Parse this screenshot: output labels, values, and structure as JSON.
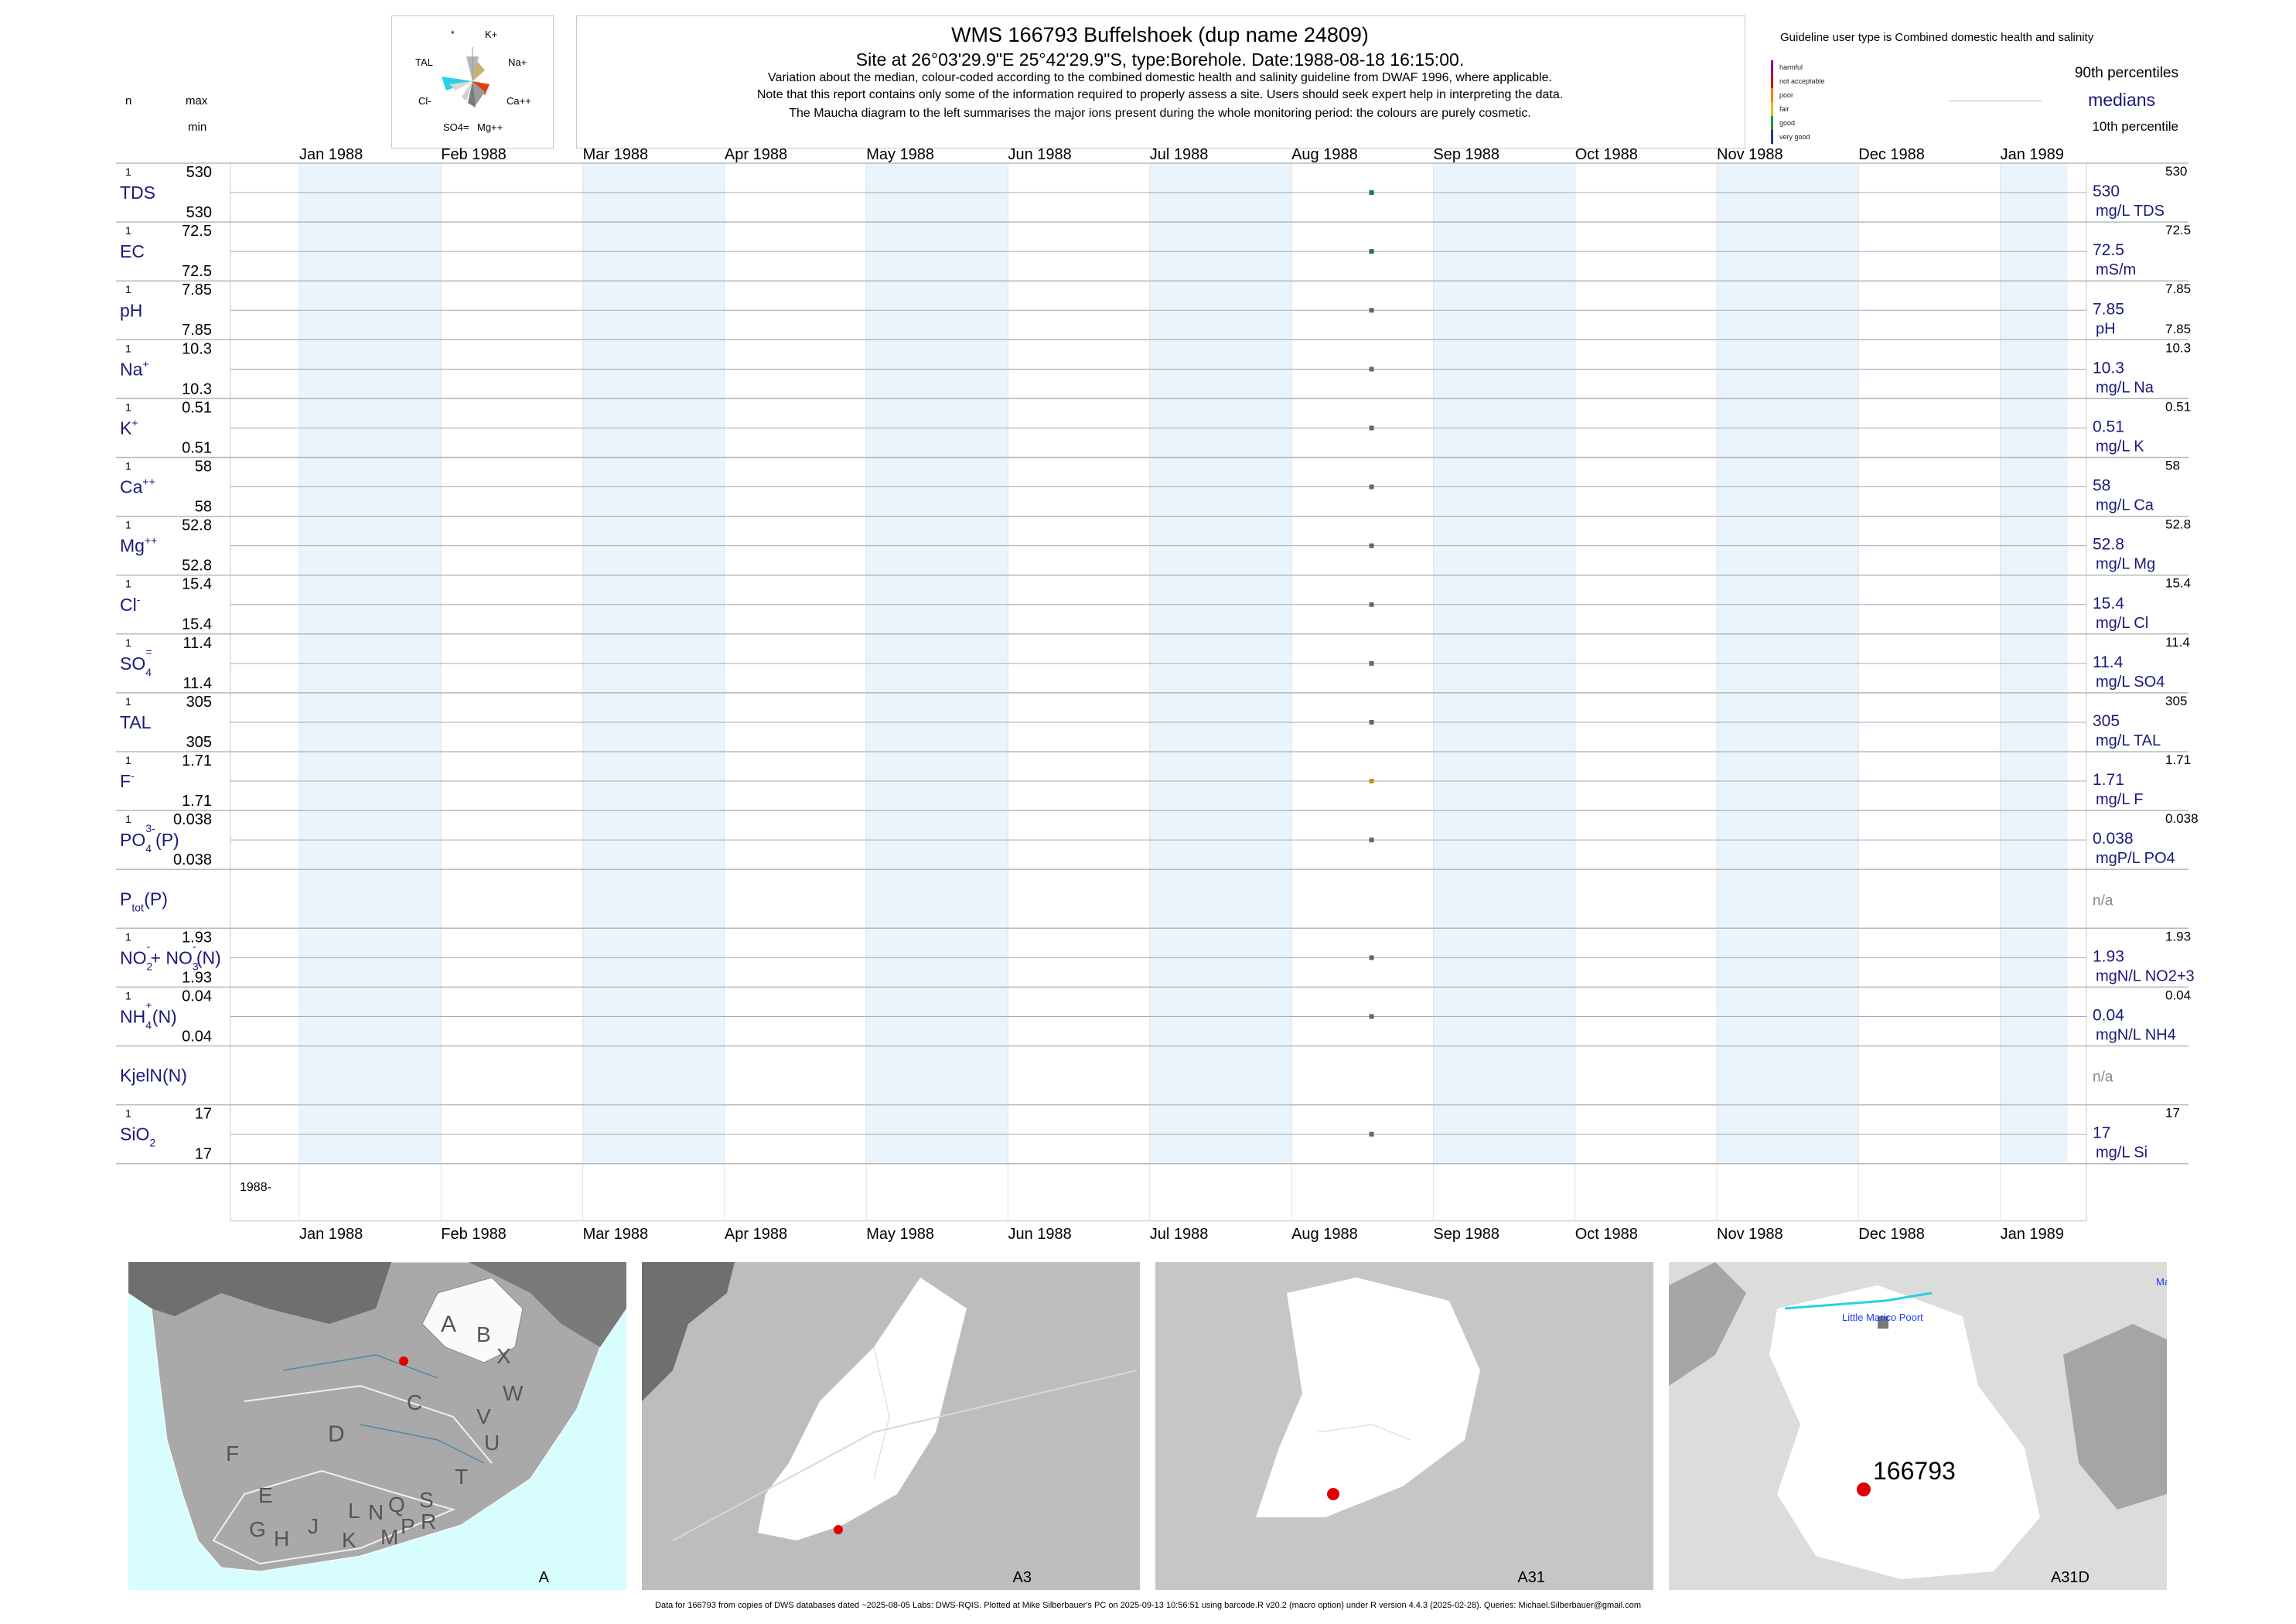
{
  "header": {
    "title": "WMS 166793  Buffelshoek (dup name 24809)",
    "subtitle": "Site at 26°03'29.9\"E 25°42'29.9\"S, type:Borehole. Date:1988-08-18 16:15:00.",
    "note1": "Variation about the median,  colour-coded according to the combined domestic health and salinity guideline from DWAF 1996, where applicable.",
    "note2": "Note that this report contains only some of the information required to properly assess a site. Users should seek expert help in interpreting the data.",
    "note3": "The Maucha diagram to the left summarises the major ions present during the whole monitoring period: the colours are purely cosmetic."
  },
  "left_header": {
    "n": "n",
    "max": "max",
    "min": "min"
  },
  "maucha": {
    "labels": [
      "*",
      "K+",
      "TAL",
      "Na+",
      "Cl-",
      "Ca++",
      "SO4=",
      "Mg++"
    ]
  },
  "legend": {
    "guideline_title": "Guideline user type is Combined domestic health and salinity",
    "classes": [
      {
        "label": "harmful",
        "color": "#8b008b"
      },
      {
        "label": "not acceptable",
        "color": "#d40000"
      },
      {
        "label": "poor",
        "color": "#ff8000"
      },
      {
        "label": "fair",
        "color": "#e6c000"
      },
      {
        "label": "good",
        "color": "#1a9a3a"
      },
      {
        "label": "very good",
        "color": "#1a3aa0"
      }
    ],
    "p90": "90th percentiles",
    "medians": "medians",
    "p10": "10th percentile"
  },
  "chart_data": {
    "type": "scatter",
    "x_axis_ticks": [
      "Jan 1988",
      "Feb 1988",
      "Mar 1988",
      "Apr 1988",
      "May 1988",
      "Jun 1988",
      "Jul 1988",
      "Aug 1988",
      "Sep 1988",
      "Oct 1988",
      "Nov 1988",
      "Dec 1988",
      "Jan 1989"
    ],
    "bottom_axis_label": "1988-",
    "sample_date": "1988-08-18",
    "panels": [
      {
        "param": "TDS",
        "n": "1",
        "max": "530",
        "min": "530",
        "median": "530",
        "unit": "mg/L TDS",
        "p90": "530",
        "p10": "",
        "value": 530,
        "color": "#1a7a3a"
      },
      {
        "param": "EC",
        "n": "1",
        "max": "72.5",
        "min": "72.5",
        "median": "72.5",
        "unit": "mS/m",
        "p90": "72.5",
        "p10": "",
        "value": 72.5,
        "color": "#1a7a3a"
      },
      {
        "param": "pH",
        "n": "1",
        "max": "7.85",
        "min": "7.85",
        "median": "7.85",
        "unit": "pH",
        "p90": "7.85",
        "p10": "7.85",
        "value": 7.85,
        "color": "#666666"
      },
      {
        "param": "Na+",
        "n": "1",
        "max": "10.3",
        "min": "10.3",
        "median": "10.3",
        "unit": "mg/L Na",
        "p90": "10.3",
        "p10": "",
        "value": 10.3,
        "color": "#666666"
      },
      {
        "param": "K+",
        "n": "1",
        "max": "0.51",
        "min": "0.51",
        "median": "0.51",
        "unit": "mg/L K",
        "p90": "0.51",
        "p10": "",
        "value": 0.51,
        "color": "#666666"
      },
      {
        "param": "Ca++",
        "n": "1",
        "max": "58",
        "min": "58",
        "median": "58",
        "unit": "mg/L Ca",
        "p90": "58",
        "p10": "",
        "value": 58,
        "color": "#666666"
      },
      {
        "param": "Mg++",
        "n": "1",
        "max": "52.8",
        "min": "52.8",
        "median": "52.8",
        "unit": "mg/L Mg",
        "p90": "52.8",
        "p10": "",
        "value": 52.8,
        "color": "#666666"
      },
      {
        "param": "Cl-",
        "n": "1",
        "max": "15.4",
        "min": "15.4",
        "median": "15.4",
        "unit": "mg/L Cl",
        "p90": "15.4",
        "p10": "",
        "value": 15.4,
        "color": "#666666"
      },
      {
        "param": "SO4=",
        "n": "1",
        "max": "11.4",
        "min": "11.4",
        "median": "11.4",
        "unit": "mg/L SO4",
        "p90": "11.4",
        "p10": "",
        "value": 11.4,
        "color": "#666666"
      },
      {
        "param": "TAL",
        "n": "1",
        "max": "305",
        "min": "305",
        "median": "305",
        "unit": "mg/L TAL",
        "p90": "305",
        "p10": "",
        "value": 305,
        "color": "#666666"
      },
      {
        "param": "F-",
        "n": "1",
        "max": "1.71",
        "min": "1.71",
        "median": "1.71",
        "unit": "mg/L F",
        "p90": "1.71",
        "p10": "",
        "value": 1.71,
        "color": "#b8962a"
      },
      {
        "param": "PO4(P)",
        "n": "1",
        "max": "0.038",
        "min": "0.038",
        "median": "0.038",
        "unit": "mgP/L PO4",
        "p90": "0.038",
        "p10": "",
        "value": 0.038,
        "color": "#666666"
      },
      {
        "param": "Ptot(P)",
        "n": "",
        "max": "",
        "min": "",
        "median": "n/a",
        "unit": "",
        "p90": "",
        "p10": "",
        "value": null,
        "color": "#666666"
      },
      {
        "param": "NO2+NO3(N)",
        "n": "1",
        "max": "1.93",
        "min": "1.93",
        "median": "1.93",
        "unit": "mgN/L NO2+3",
        "p90": "1.93",
        "p10": "",
        "value": 1.93,
        "color": "#666666"
      },
      {
        "param": "NH4(N)",
        "n": "1",
        "max": "0.04",
        "min": "0.04",
        "median": "0.04",
        "unit": "mgN/L NH4",
        "p90": "0.04",
        "p10": "",
        "value": 0.04,
        "color": "#666666"
      },
      {
        "param": "KjelN(N)",
        "n": "",
        "max": "",
        "min": "",
        "median": "n/a",
        "unit": "",
        "p90": "",
        "p10": "",
        "value": null,
        "color": "#666666"
      },
      {
        "param": "SiO2",
        "n": "1",
        "max": "17",
        "min": "17",
        "median": "17",
        "unit": "mg/L Si",
        "p90": "17",
        "p10": "",
        "value": 17,
        "color": "#666666"
      }
    ]
  },
  "maps": {
    "panel1": {
      "label": "A",
      "regions": [
        "A",
        "B",
        "X",
        "C",
        "W",
        "D",
        "V",
        "U",
        "T",
        "F",
        "E",
        "S",
        "Q",
        "R",
        "N",
        "L",
        "P",
        "M",
        "J",
        "K",
        "G",
        "H"
      ]
    },
    "panel2": {
      "label": "A3"
    },
    "panel3": {
      "label": "A31"
    },
    "panel4": {
      "label": "A31D",
      "site_label": "166793",
      "place1": "Little Marico Poort",
      "place2": "Ma"
    }
  },
  "footer": "Data for 166793 from copies of DWS databases dated ~2025-08-05 Labs: DWS-RQIS. Plotted at Mike Silberbauer's PC on 2025-09-13 10:56:51 using barcode.R v20.2 (macro option) under R version 4.4.3 (2025-02-28). Queries: Michael.Silberbauer@gmail.com"
}
